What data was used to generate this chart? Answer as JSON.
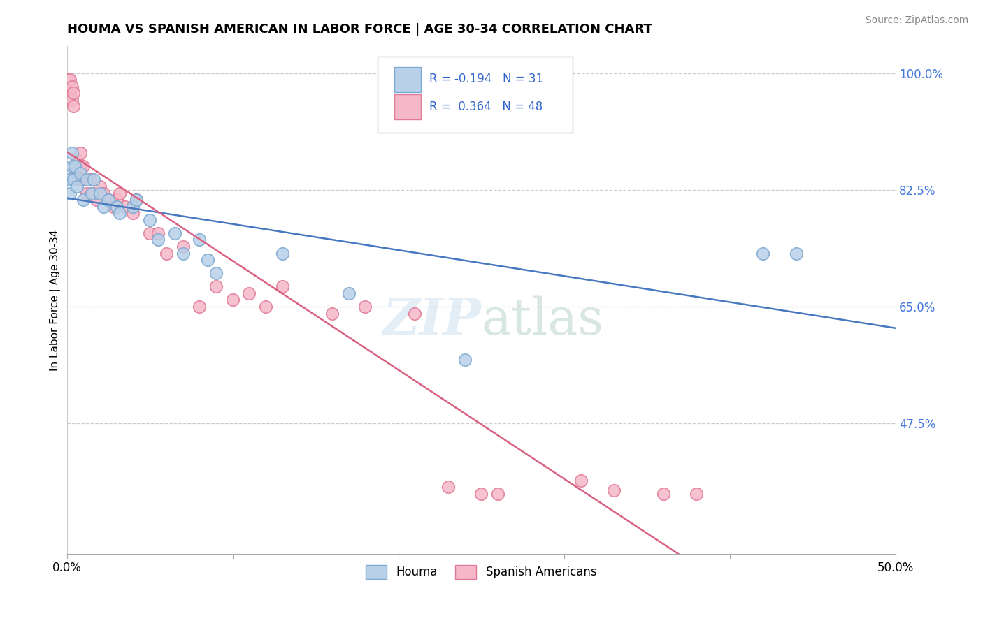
{
  "title": "HOUMA VS SPANISH AMERICAN IN LABOR FORCE | AGE 30-34 CORRELATION CHART",
  "source": "Source: ZipAtlas.com",
  "ylabel": "In Labor Force | Age 30-34",
  "xlim": [
    0.0,
    0.5
  ],
  "ylim": [
    0.28,
    1.04
  ],
  "x_ticks": [
    0.0,
    0.1,
    0.2,
    0.3,
    0.4,
    0.5
  ],
  "x_tick_labels": [
    "0.0%",
    "",
    "",
    "",
    "",
    "50.0%"
  ],
  "y_ticks_right": [
    0.475,
    0.65,
    0.825,
    1.0
  ],
  "y_tick_labels_right": [
    "47.5%",
    "65.0%",
    "82.5%",
    "100.0%"
  ],
  "houma_color": "#b8d0e8",
  "spanish_color": "#f5b8c8",
  "houma_edge_color": "#7aa8d0",
  "spanish_edge_color": "#e07898",
  "trend_houma_color": "#4878c0",
  "trend_spanish_color": "#d86080",
  "R_houma": -0.194,
  "N_houma": 31,
  "R_spanish": 0.364,
  "N_spanish": 48,
  "legend_label_houma": "Houma",
  "legend_label_spanish": "Spanish Americans",
  "watermark_zip": "ZIP",
  "watermark_atlas": "atlas",
  "houma_x": [
    0.002,
    0.002,
    0.003,
    0.003,
    0.004,
    0.005,
    0.006,
    0.008,
    0.01,
    0.012,
    0.015,
    0.016,
    0.02,
    0.022,
    0.025,
    0.03,
    0.032,
    0.04,
    0.042,
    0.05,
    0.055,
    0.065,
    0.07,
    0.08,
    0.085,
    0.09,
    0.13,
    0.17,
    0.24,
    0.42,
    0.44
  ],
  "houma_y": [
    0.82,
    0.84,
    0.86,
    0.88,
    0.84,
    0.86,
    0.83,
    0.85,
    0.81,
    0.84,
    0.82,
    0.84,
    0.82,
    0.8,
    0.81,
    0.8,
    0.79,
    0.8,
    0.81,
    0.78,
    0.75,
    0.76,
    0.73,
    0.75,
    0.72,
    0.7,
    0.73,
    0.67,
    0.57,
    0.73,
    0.73
  ],
  "spanish_x": [
    0.001,
    0.001,
    0.002,
    0.002,
    0.003,
    0.003,
    0.004,
    0.004,
    0.005,
    0.006,
    0.007,
    0.008,
    0.008,
    0.01,
    0.01,
    0.012,
    0.014,
    0.015,
    0.018,
    0.02,
    0.022,
    0.025,
    0.028,
    0.03,
    0.032,
    0.035,
    0.04,
    0.042,
    0.05,
    0.055,
    0.06,
    0.07,
    0.08,
    0.09,
    0.1,
    0.11,
    0.12,
    0.13,
    0.16,
    0.18,
    0.21,
    0.23,
    0.25,
    0.26,
    0.31,
    0.33,
    0.36,
    0.38
  ],
  "spanish_y": [
    0.99,
    0.97,
    0.99,
    0.97,
    0.96,
    0.98,
    0.95,
    0.97,
    0.85,
    0.87,
    0.84,
    0.86,
    0.88,
    0.84,
    0.86,
    0.82,
    0.84,
    0.82,
    0.81,
    0.83,
    0.82,
    0.81,
    0.8,
    0.81,
    0.82,
    0.8,
    0.79,
    0.81,
    0.76,
    0.76,
    0.73,
    0.74,
    0.65,
    0.68,
    0.66,
    0.67,
    0.65,
    0.68,
    0.64,
    0.65,
    0.64,
    0.38,
    0.37,
    0.37,
    0.39,
    0.375,
    0.37,
    0.37
  ]
}
